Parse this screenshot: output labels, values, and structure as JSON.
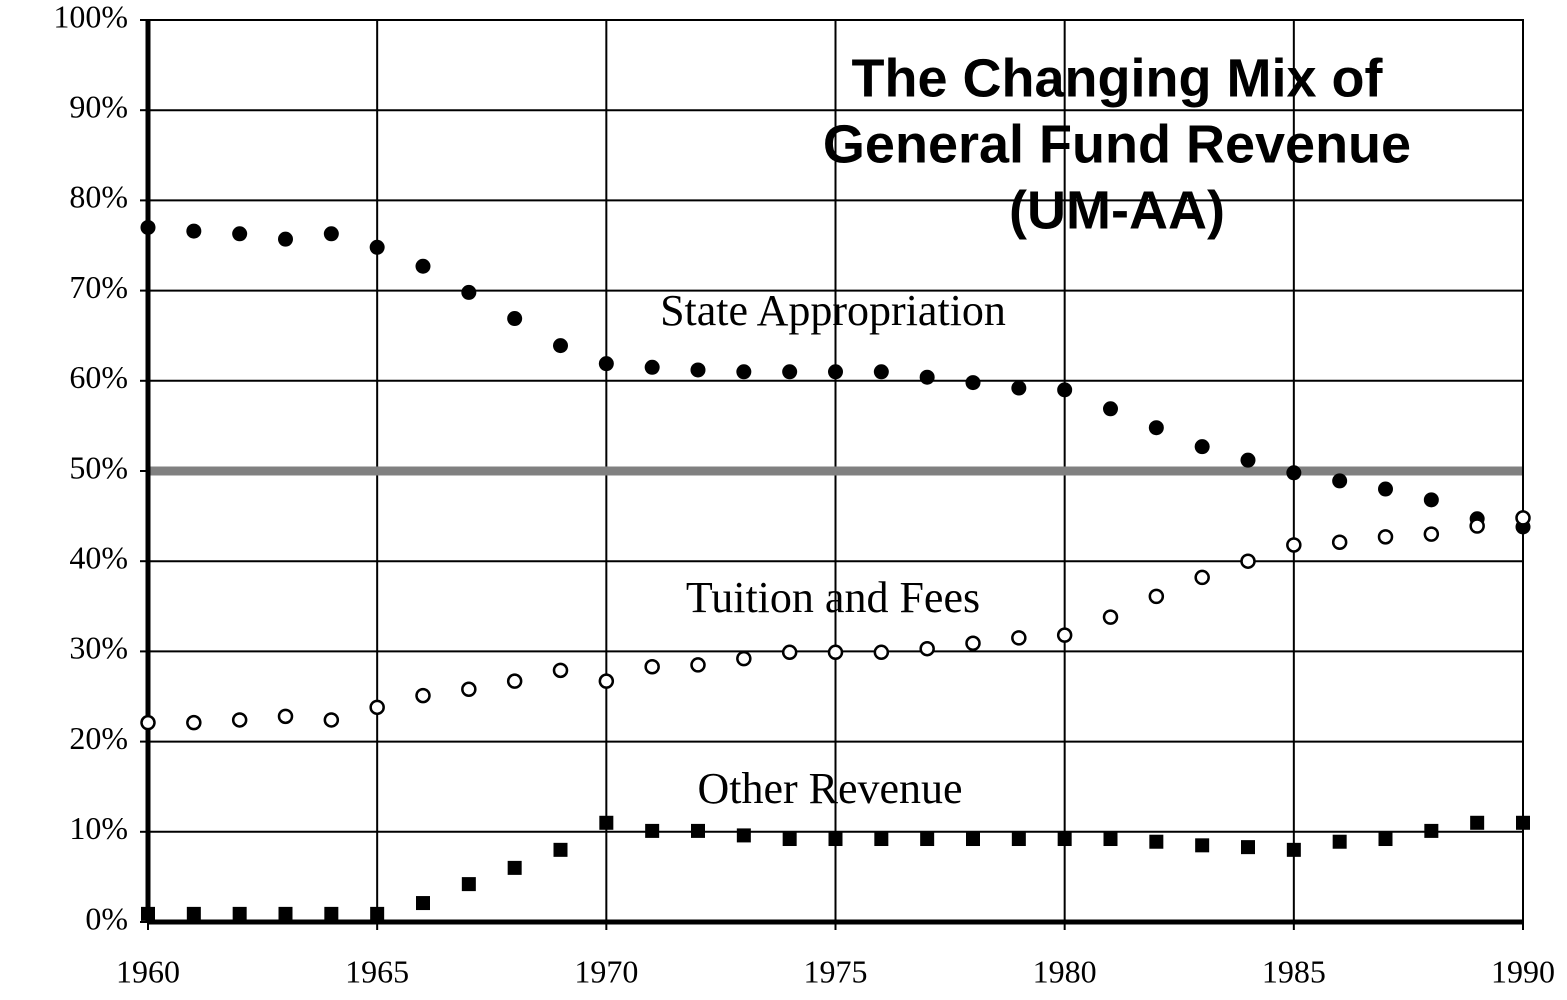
{
  "chart_data": {
    "type": "scatter",
    "title": [
      "The Changing Mix of",
      "General Fund Revenue",
      "(UM-AA)"
    ],
    "x": [
      1960,
      1961,
      1962,
      1963,
      1964,
      1965,
      1966,
      1967,
      1968,
      1969,
      1970,
      1971,
      1972,
      1973,
      1974,
      1975,
      1976,
      1977,
      1978,
      1979,
      1980,
      1981,
      1982,
      1983,
      1984,
      1985,
      1986,
      1987,
      1988,
      1989,
      1990
    ],
    "series": [
      {
        "name": "State Appropriation",
        "color": "#000000",
        "marker": "filled-circle",
        "values": [
          77,
          76.6,
          76.3,
          75.7,
          76.3,
          74.8,
          72.7,
          69.8,
          66.9,
          63.9,
          61.9,
          61.5,
          61.2,
          61,
          61,
          61,
          61,
          60.4,
          59.8,
          59.2,
          59,
          56.9,
          54.8,
          52.7,
          51.2,
          49.8,
          48.9,
          48,
          46.8,
          44.7,
          43.8
        ]
      },
      {
        "name": "Tuition and Fees",
        "color": "#000000",
        "marker": "open-circle",
        "values": [
          22.1,
          22.1,
          22.4,
          22.8,
          22.4,
          23.8,
          25.1,
          25.8,
          26.7,
          27.9,
          26.7,
          28.3,
          28.5,
          29.2,
          29.9,
          29.9,
          29.9,
          30.3,
          30.9,
          31.5,
          31.8,
          33.8,
          36.1,
          38.2,
          40,
          41.8,
          42.1,
          42.7,
          43,
          43.9,
          44.8
        ]
      },
      {
        "name": "Other Revenue",
        "color": "#000000",
        "marker": "square",
        "values": [
          0.9,
          0.9,
          0.9,
          0.9,
          0.9,
          0.9,
          2.1,
          4.2,
          6,
          8,
          11,
          10.1,
          10.1,
          9.6,
          9.2,
          9.2,
          9.2,
          9.2,
          9.2,
          9.2,
          9.2,
          9.2,
          8.9,
          8.5,
          8.3,
          8,
          8.9,
          9.2,
          10.1,
          11,
          11
        ]
      }
    ],
    "xlim": [
      1960,
      1990
    ],
    "xticks": [
      1960,
      1965,
      1970,
      1975,
      1980,
      1985,
      1990
    ],
    "ylim": [
      0,
      100
    ],
    "yticks": [
      {
        "value": 0,
        "label": "0%"
      },
      {
        "value": 10,
        "label": "10%"
      },
      {
        "value": 20,
        "label": "20%"
      },
      {
        "value": 30,
        "label": "30%"
      },
      {
        "value": 40,
        "label": "40%"
      },
      {
        "value": 50,
        "label": "50%"
      },
      {
        "value": 60,
        "label": "60%"
      },
      {
        "value": 70,
        "label": "70%"
      },
      {
        "value": 80,
        "label": "80%"
      },
      {
        "value": 90,
        "label": "90%"
      },
      {
        "value": 100,
        "label": "100%"
      }
    ],
    "grid": true,
    "reference_line": {
      "value": 50,
      "color": "#808080"
    }
  }
}
